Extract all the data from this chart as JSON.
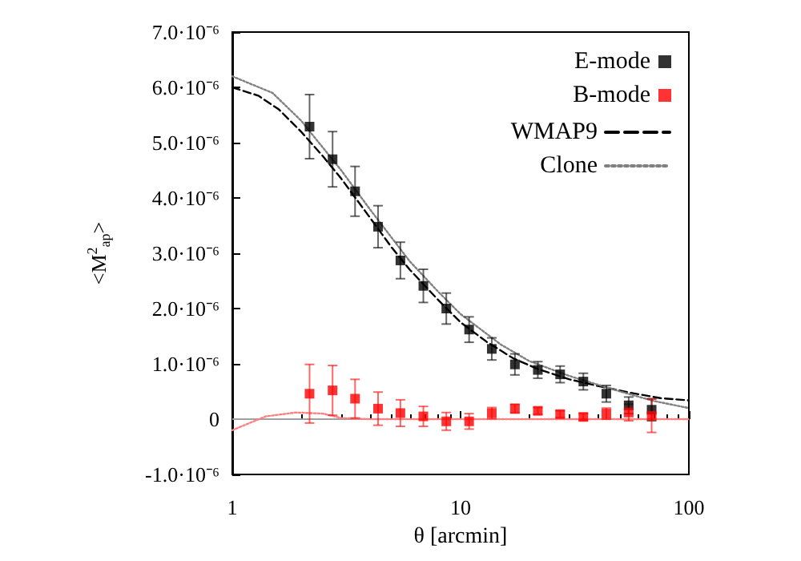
{
  "chart_data": {
    "type": "scatter",
    "xlabel": "θ [arcmin]",
    "ylabel": "<M$^{2}$$_{ap}$>",
    "log": "x",
    "grid": false,
    "legend": "top right",
    "xlim": [
      1,
      100
    ],
    "xticks": [
      1,
      10,
      100
    ],
    "ylim": [
      -1e-06,
      7e-06
    ],
    "yticks": [
      {
        "value": -1e-06,
        "label": "-1.0·10⁻⁶"
      },
      0,
      {
        "value": 1e-06,
        "label": "1.0·10⁻⁶"
      },
      {
        "value": 2e-06,
        "label": "2.0·10⁻⁶"
      },
      {
        "value": 3e-06,
        "label": "3.0·10⁻⁶"
      },
      {
        "value": 4e-06,
        "label": "4.0·10⁻⁶"
      },
      {
        "value": 5e-06,
        "label": "5.0·10⁻⁶"
      },
      {
        "value": 6e-06,
        "label": "6.0·10⁻⁶"
      },
      {
        "value": 7e-06,
        "label": "7.0·10⁻⁶"
      }
    ],
    "ref_lines": [
      {
        "axis": "y",
        "value": 0,
        "color": "#a0a0a0",
        "line_style": "solid"
      }
    ],
    "series": [
      {
        "name": "E-mode",
        "marker": "square",
        "color": "#000000",
        "x": [
          2.18,
          2.75,
          3.45,
          4.35,
          5.45,
          6.87,
          8.66,
          10.9,
          13.7,
          17.3,
          21.8,
          27.3,
          34.5,
          43.5,
          54.5,
          68.7
        ],
        "values": [
          5.29e-06,
          4.7e-06,
          4.12e-06,
          3.48e-06,
          2.87e-06,
          2.41e-06,
          2e-06,
          1.62e-06,
          1.27e-06,
          9.9e-07,
          8.9e-07,
          8.1e-07,
          6.8e-07,
          4.6e-07,
          2.5e-07,
          1.7e-07
        ],
        "errors": [
          5.8e-07,
          5e-07,
          4.5e-07,
          3.8e-07,
          3.3e-07,
          3e-07,
          2.8e-07,
          2.3e-07,
          2e-07,
          1.9e-07,
          1.5e-07,
          1.5e-07,
          1.5e-07,
          1.5e-07,
          1.5e-07,
          2e-07
        ]
      },
      {
        "name": "B-mode",
        "marker": "square",
        "color": "#ff0000",
        "x": [
          2.18,
          2.75,
          3.45,
          4.35,
          5.45,
          6.87,
          8.66,
          10.9,
          13.7,
          17.3,
          21.8,
          27.3,
          34.5,
          43.5,
          54.5,
          68.7
        ],
        "values": [
          4.6e-07,
          5.2e-07,
          3.7e-07,
          1.9e-07,
          1.1e-07,
          5e-08,
          -4e-08,
          -4e-08,
          1.1e-07,
          1.9e-07,
          1.5e-07,
          9e-08,
          4e-08,
          1e-07,
          1.2e-07,
          6e-08
        ],
        "errors": [
          5.3e-07,
          4.5e-07,
          3.5e-07,
          3e-07,
          2.4e-07,
          1.8e-07,
          1.6e-07,
          1.4e-07,
          1e-07,
          8e-08,
          6e-08,
          6e-08,
          6e-08,
          1e-07,
          1.5e-07,
          3e-07
        ]
      },
      {
        "name": "WMAP9",
        "type": "line",
        "marker": "none",
        "line_style": "dashed",
        "color": "#000000",
        "x": [
          1,
          1.3,
          1.6,
          2,
          2.5,
          3,
          4,
          5,
          6,
          8,
          10,
          13,
          17,
          22,
          30,
          40,
          55,
          75,
          100
        ],
        "values": [
          6e-06,
          5.85e-06,
          5.6e-06,
          5.2e-06,
          4.75e-06,
          4.35e-06,
          3.65e-06,
          3.1e-06,
          2.7e-06,
          2.15e-06,
          1.75e-06,
          1.4e-06,
          1.1e-06,
          9e-07,
          7.2e-07,
          6e-07,
          4.8e-07,
          3.8e-07,
          3.4e-07
        ]
      },
      {
        "name": "Clone",
        "type": "line",
        "marker": "none",
        "line_style": "dotted",
        "color": "#808080",
        "x": [
          1,
          1.5,
          2,
          3,
          4,
          6,
          8,
          10,
          15,
          20,
          30,
          50,
          70,
          100
        ],
        "values": [
          6.2e-06,
          5.9e-06,
          5.4e-06,
          4.5e-06,
          3.8e-06,
          2.85e-06,
          2.3e-06,
          1.9e-06,
          1.35e-06,
          1.05e-06,
          7.8e-07,
          5e-07,
          3.3e-07,
          2e-07
        ]
      },
      {
        "type": "line",
        "marker": "none",
        "line_style": "dotted",
        "color": "#ff8080",
        "x": [
          1,
          1.4,
          1.9,
          2.5,
          3,
          4,
          6,
          10,
          20,
          50,
          100
        ],
        "values": [
          -2e-07,
          5e-08,
          1.2e-07,
          1e-07,
          2e-08,
          0,
          0,
          0,
          0,
          0,
          0
        ]
      }
    ]
  }
}
